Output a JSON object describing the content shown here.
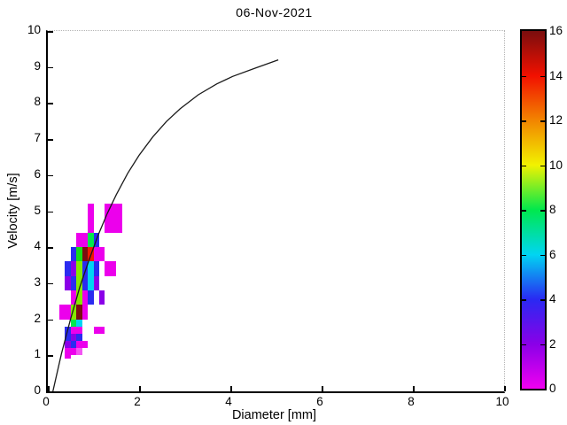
{
  "figure": {
    "background": "#FFFFFF",
    "axis_color": "#000000",
    "box_dotted_color": "#B4B4B4"
  },
  "chart_data": {
    "type": "heatmap",
    "title": "06-Nov-2021",
    "xlabel": "Diameter [mm]",
    "ylabel": "Velocity [m/s]",
    "xlim": [
      0,
      10
    ],
    "ylim": [
      0,
      10
    ],
    "xticks": [
      0,
      2,
      4,
      6,
      8,
      10
    ],
    "yticks": [
      0,
      1,
      2,
      3,
      4,
      5,
      6,
      7,
      8,
      9,
      10
    ],
    "grid": false,
    "legend": "colorbar-right",
    "colorbar": {
      "min": 0,
      "max": 16,
      "ticks": [
        0,
        2,
        4,
        6,
        8,
        10,
        12,
        14,
        16
      ],
      "inner_ticks": [
        2,
        4,
        6,
        8,
        10,
        12,
        14
      ],
      "stops": [
        {
          "val": 0,
          "color": "#F000F0"
        },
        {
          "val": 2,
          "color": "#8A00E8"
        },
        {
          "val": 4,
          "color": "#2929F2"
        },
        {
          "val": 6,
          "color": "#00D5F2"
        },
        {
          "val": 8,
          "color": "#00E84D"
        },
        {
          "val": 10,
          "color": "#F2F200"
        },
        {
          "val": 12,
          "color": "#F28500"
        },
        {
          "val": 14,
          "color": "#F21000"
        },
        {
          "val": 16,
          "color": "#7A0E0E"
        }
      ]
    },
    "cells": [
      {
        "d": [
          0.875,
          1.0
        ],
        "v": [
          4.4,
          5.2
        ],
        "count": 1,
        "color": "#EC00EC"
      },
      {
        "d": [
          1.25,
          1.625
        ],
        "v": [
          4.4,
          5.2
        ],
        "count": 1,
        "color": "#EC00EC"
      },
      {
        "d": [
          0.625,
          0.875
        ],
        "v": [
          4.0,
          4.4
        ],
        "count": 1,
        "color": "#EC00EC"
      },
      {
        "d": [
          0.875,
          1.0
        ],
        "v": [
          4.0,
          4.4
        ],
        "count": 8,
        "color": "#00E84D"
      },
      {
        "d": [
          1.0,
          1.125
        ],
        "v": [
          4.0,
          4.4
        ],
        "count": 4,
        "color": "#2929F2"
      },
      {
        "d": [
          0.5,
          0.625
        ],
        "v": [
          3.6,
          4.0
        ],
        "count": 4,
        "color": "#2B2BF0"
      },
      {
        "d": [
          0.625,
          0.75
        ],
        "v": [
          3.6,
          4.0
        ],
        "count": 8,
        "color": "#16DD16"
      },
      {
        "d": [
          0.75,
          0.875
        ],
        "v": [
          3.6,
          4.0
        ],
        "count": 16,
        "color": "#7A1010"
      },
      {
        "d": [
          0.875,
          1.0
        ],
        "v": [
          3.6,
          4.0
        ],
        "count": 14,
        "color": "#F21800"
      },
      {
        "d": [
          1.0,
          1.25
        ],
        "v": [
          3.6,
          4.0
        ],
        "count": 1,
        "color": "#EC00EC"
      },
      {
        "d": [
          0.375,
          0.5
        ],
        "v": [
          3.2,
          3.6
        ],
        "count": 4,
        "color": "#2B2BF0"
      },
      {
        "d": [
          0.5,
          0.625
        ],
        "v": [
          3.2,
          3.6
        ],
        "count": 3,
        "color": "#8A00E8"
      },
      {
        "d": [
          0.625,
          0.75
        ],
        "v": [
          3.2,
          3.6
        ],
        "count": 9,
        "color": "#86E800"
      },
      {
        "d": [
          0.75,
          0.875
        ],
        "v": [
          3.2,
          3.6
        ],
        "count": 4,
        "color": "#2B2BF0"
      },
      {
        "d": [
          0.875,
          1.0
        ],
        "v": [
          3.2,
          3.6
        ],
        "count": 6,
        "color": "#00D5F2"
      },
      {
        "d": [
          1.0,
          1.125
        ],
        "v": [
          3.2,
          3.6
        ],
        "count": 4,
        "color": "#2B2BF0"
      },
      {
        "d": [
          1.25,
          1.5
        ],
        "v": [
          3.2,
          3.6
        ],
        "count": 1,
        "color": "#EC00EC"
      },
      {
        "d": [
          0.375,
          0.5
        ],
        "v": [
          2.8,
          3.2
        ],
        "count": 3,
        "color": "#8A00E8"
      },
      {
        "d": [
          0.5,
          0.625
        ],
        "v": [
          2.8,
          3.2
        ],
        "count": 4,
        "color": "#2B2BF0"
      },
      {
        "d": [
          0.625,
          0.75
        ],
        "v": [
          2.8,
          3.2
        ],
        "count": 9,
        "color": "#86E800"
      },
      {
        "d": [
          0.75,
          0.875
        ],
        "v": [
          2.8,
          3.2
        ],
        "count": 4,
        "color": "#2B2BF0"
      },
      {
        "d": [
          0.875,
          1.0
        ],
        "v": [
          2.8,
          3.2
        ],
        "count": 6,
        "color": "#00D5F2"
      },
      {
        "d": [
          1.0,
          1.125
        ],
        "v": [
          2.8,
          3.2
        ],
        "count": 3,
        "color": "#8A00E8"
      },
      {
        "d": [
          0.5,
          0.625
        ],
        "v": [
          2.4,
          2.8
        ],
        "count": 1,
        "color": "#EC00EC"
      },
      {
        "d": [
          0.625,
          0.75
        ],
        "v": [
          2.4,
          2.8
        ],
        "count": 9,
        "color": "#86E800"
      },
      {
        "d": [
          0.75,
          0.875
        ],
        "v": [
          2.4,
          2.8
        ],
        "count": 1,
        "color": "#EC00EC"
      },
      {
        "d": [
          0.875,
          1.0
        ],
        "v": [
          2.4,
          2.8
        ],
        "count": 4,
        "color": "#2B2BF0"
      },
      {
        "d": [
          1.125,
          1.25
        ],
        "v": [
          2.4,
          2.8
        ],
        "count": 3,
        "color": "#8A00E8"
      },
      {
        "d": [
          0.25,
          0.5
        ],
        "v": [
          2.0,
          2.4
        ],
        "count": 1,
        "color": "#EC00EC"
      },
      {
        "d": [
          0.5,
          0.625
        ],
        "v": [
          2.0,
          2.4
        ],
        "count": 9,
        "color": "#86E800"
      },
      {
        "d": [
          0.625,
          0.75
        ],
        "v": [
          2.0,
          2.4
        ],
        "count": 16,
        "color": "#7A1010"
      },
      {
        "d": [
          0.75,
          0.875
        ],
        "v": [
          2.0,
          2.4
        ],
        "count": 1,
        "color": "#EC00EC"
      },
      {
        "d": [
          0.5,
          0.625
        ],
        "v": [
          1.8,
          2.0
        ],
        "count": 8,
        "color": "#00E84D"
      },
      {
        "d": [
          0.625,
          0.75
        ],
        "v": [
          1.8,
          2.0
        ],
        "count": 6,
        "color": "#00D5F2"
      },
      {
        "d": [
          0.375,
          0.5
        ],
        "v": [
          1.6,
          1.8
        ],
        "count": 4,
        "color": "#2B2BF0"
      },
      {
        "d": [
          0.5,
          0.75
        ],
        "v": [
          1.6,
          1.8
        ],
        "count": 1,
        "color": "#EC00EC"
      },
      {
        "d": [
          1.0,
          1.25
        ],
        "v": [
          1.6,
          1.8
        ],
        "count": 1,
        "color": "#EC00EC"
      },
      {
        "d": [
          0.375,
          0.5
        ],
        "v": [
          1.4,
          1.6
        ],
        "count": 4,
        "color": "#2B2BF0"
      },
      {
        "d": [
          0.5,
          0.625
        ],
        "v": [
          1.4,
          1.6
        ],
        "count": 3,
        "color": "#8A00E8"
      },
      {
        "d": [
          0.625,
          0.75
        ],
        "v": [
          1.4,
          1.6
        ],
        "count": 4,
        "color": "#2B2BF0"
      },
      {
        "d": [
          0.375,
          0.5
        ],
        "v": [
          1.2,
          1.4
        ],
        "count": 3,
        "color": "#8A00E8"
      },
      {
        "d": [
          0.5,
          0.625
        ],
        "v": [
          1.2,
          1.4
        ],
        "count": 4,
        "color": "#2B2BF0"
      },
      {
        "d": [
          0.625,
          0.875
        ],
        "v": [
          1.2,
          1.4
        ],
        "count": 1,
        "color": "#EC00EC"
      },
      {
        "d": [
          0.375,
          0.625
        ],
        "v": [
          1.0,
          1.2
        ],
        "count": 1,
        "color": "#EC00EC"
      },
      {
        "d": [
          0.625,
          0.75
        ],
        "v": [
          1.0,
          1.2
        ],
        "count": 1,
        "color": "#F355F3"
      },
      {
        "d": [
          0.375,
          0.5
        ],
        "v": [
          0.9,
          1.0
        ],
        "count": 1,
        "color": "#EC00EC"
      }
    ],
    "curve": {
      "name": "terminal-velocity-curve",
      "color": "#1A1A1A",
      "points": [
        [
          0.11,
          0.0
        ],
        [
          0.3,
          1.05
        ],
        [
          0.5,
          2.02
        ],
        [
          0.7,
          2.89
        ],
        [
          0.9,
          3.64
        ],
        [
          1.1,
          4.33
        ],
        [
          1.3,
          4.93
        ],
        [
          1.5,
          5.46
        ],
        [
          1.75,
          6.05
        ],
        [
          2.0,
          6.55
        ],
        [
          2.3,
          7.06
        ],
        [
          2.6,
          7.49
        ],
        [
          2.9,
          7.84
        ],
        [
          3.3,
          8.23
        ],
        [
          3.7,
          8.53
        ],
        [
          4.05,
          8.74
        ],
        [
          4.55,
          8.97
        ],
        [
          5.05,
          9.2
        ]
      ]
    }
  }
}
